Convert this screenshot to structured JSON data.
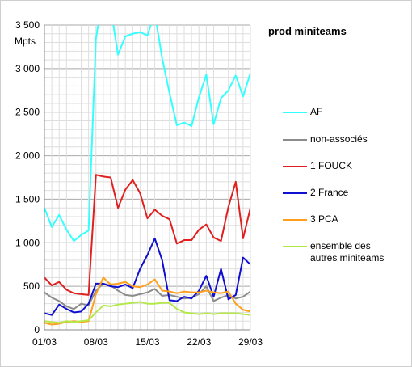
{
  "chart_data": {
    "type": "line",
    "title": "prod miniteams",
    "ylabel": "Mpts",
    "xlabel": "",
    "ylim": [
      0,
      3500
    ],
    "yticks": [
      0,
      500,
      1000,
      1500,
      2000,
      2500,
      3000,
      3500
    ],
    "ytick_labels": [
      "0",
      "500",
      "1 000",
      "1 500",
      "2 000",
      "2 500",
      "3 000",
      "3 500"
    ],
    "xtick_labels": [
      {
        "label": "01/03",
        "x": 1
      },
      {
        "label": "08/03",
        "x": 8
      },
      {
        "label": "15/03",
        "x": 15
      },
      {
        "label": "22/03",
        "x": 22
      },
      {
        "label": "29/03",
        "x": 29
      }
    ],
    "xlim": [
      1,
      29
    ],
    "grid": true,
    "legend": "right",
    "x": [
      1,
      2,
      3,
      4,
      5,
      6,
      7,
      8,
      9,
      10,
      11,
      12,
      13,
      14,
      15,
      16,
      17,
      18,
      19,
      20,
      21,
      22,
      23,
      24,
      25,
      26,
      27,
      28,
      29
    ],
    "series": [
      {
        "name": "AF",
        "color": "#33ffff",
        "values": [
          1400,
          1180,
          1320,
          1150,
          1020,
          1090,
          1140,
          3340,
          3880,
          3700,
          3160,
          3370,
          3400,
          3420,
          3380,
          3640,
          3120,
          2720,
          2350,
          2380,
          2340,
          2670,
          2930,
          2360,
          2660,
          2750,
          2920,
          2680,
          2950
        ]
      },
      {
        "name": "non-associés",
        "color": "#8c8c8c",
        "values": [
          430,
          370,
          330,
          270,
          240,
          300,
          280,
          450,
          530,
          510,
          450,
          400,
          390,
          410,
          430,
          470,
          390,
          400,
          380,
          360,
          370,
          410,
          500,
          330,
          370,
          400,
          360,
          380,
          440
        ]
      },
      {
        "name": "1 FOUCK",
        "color": "#e02020",
        "values": [
          600,
          510,
          550,
          460,
          420,
          410,
          400,
          1780,
          1760,
          1750,
          1400,
          1610,
          1720,
          1570,
          1280,
          1380,
          1310,
          1270,
          990,
          1030,
          1030,
          1150,
          1210,
          1060,
          1020,
          1410,
          1700,
          1050,
          1400
        ]
      },
      {
        "name": "2 France",
        "color": "#1010d0",
        "values": [
          190,
          170,
          290,
          240,
          200,
          210,
          300,
          530,
          530,
          500,
          490,
          520,
          480,
          700,
          860,
          1050,
          800,
          340,
          330,
          380,
          360,
          450,
          620,
          380,
          700,
          350,
          400,
          830,
          750
        ]
      },
      {
        "name": "3 PCA",
        "color": "#ff9f1c",
        "values": [
          80,
          60,
          70,
          90,
          100,
          90,
          100,
          410,
          600,
          520,
          530,
          550,
          500,
          490,
          520,
          580,
          450,
          440,
          420,
          440,
          430,
          430,
          450,
          430,
          420,
          440,
          300,
          230,
          210
        ]
      },
      {
        "name": "ensemble des\nautres miniteams",
        "color": "#b4e84a",
        "values": [
          100,
          90,
          80,
          100,
          90,
          100,
          110,
          200,
          280,
          270,
          290,
          300,
          310,
          320,
          300,
          300,
          310,
          310,
          240,
          200,
          190,
          180,
          190,
          180,
          190,
          190,
          190,
          180,
          170
        ]
      }
    ]
  }
}
